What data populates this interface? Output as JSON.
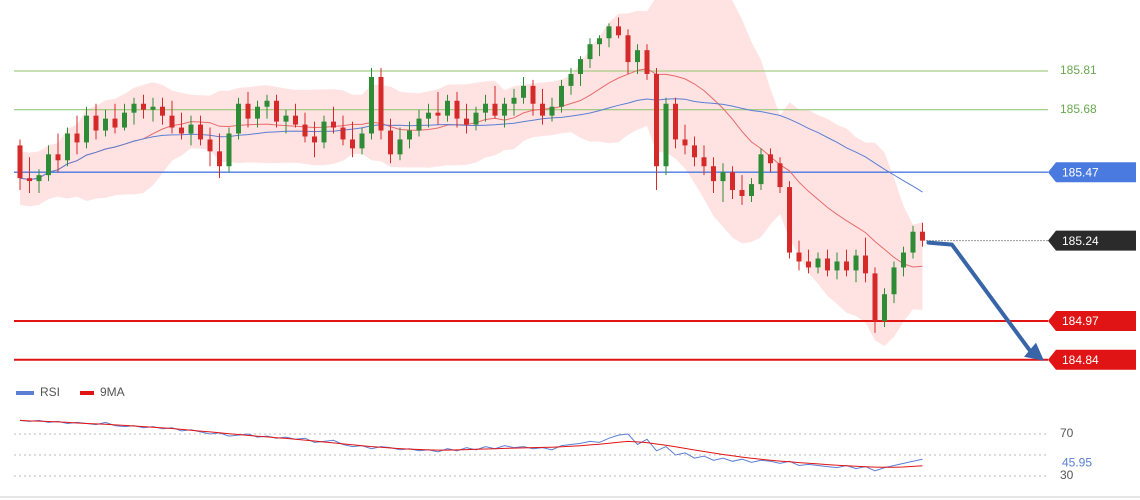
{
  "chart_data": [
    {
      "type": "candlestick",
      "title": "",
      "xlabel": "",
      "ylabel": "",
      "ylim": [
        184.78,
        186.0
      ],
      "grid": false,
      "candles_ohlc": [
        [
          185.56,
          185.58,
          185.41,
          185.45
        ],
        [
          185.45,
          185.52,
          185.4,
          185.44
        ],
        [
          185.44,
          185.48,
          185.4,
          185.46
        ],
        [
          185.46,
          185.56,
          185.44,
          185.53
        ],
        [
          185.53,
          185.6,
          185.47,
          185.51
        ],
        [
          185.51,
          185.62,
          185.49,
          185.6
        ],
        [
          185.6,
          185.66,
          185.53,
          185.57
        ],
        [
          185.57,
          185.69,
          185.55,
          185.66
        ],
        [
          185.66,
          185.7,
          185.58,
          185.61
        ],
        [
          185.61,
          185.68,
          185.59,
          185.65
        ],
        [
          185.65,
          185.7,
          185.6,
          185.62
        ],
        [
          185.62,
          185.7,
          185.61,
          185.67
        ],
        [
          185.67,
          185.72,
          185.63,
          185.7
        ],
        [
          185.7,
          185.73,
          185.65,
          185.68
        ],
        [
          185.68,
          185.72,
          185.64,
          185.69
        ],
        [
          185.69,
          185.72,
          185.63,
          185.66
        ],
        [
          185.66,
          185.71,
          185.6,
          185.62
        ],
        [
          185.62,
          185.67,
          185.58,
          185.6
        ],
        [
          185.6,
          185.66,
          185.56,
          185.63
        ],
        [
          185.63,
          185.66,
          185.56,
          185.58
        ],
        [
          185.58,
          185.62,
          185.49,
          185.54
        ],
        [
          185.54,
          185.6,
          185.45,
          185.49
        ],
        [
          185.49,
          185.62,
          185.47,
          185.6
        ],
        [
          185.6,
          185.72,
          185.58,
          185.7
        ],
        [
          185.7,
          185.74,
          185.62,
          185.65
        ],
        [
          185.65,
          185.71,
          185.62,
          185.69
        ],
        [
          185.69,
          185.73,
          185.65,
          185.71
        ],
        [
          185.71,
          185.73,
          185.62,
          185.64
        ],
        [
          185.64,
          185.68,
          185.6,
          185.66
        ],
        [
          185.66,
          185.7,
          185.62,
          185.63
        ],
        [
          185.63,
          185.67,
          185.57,
          185.59
        ],
        [
          185.59,
          185.64,
          185.52,
          185.57
        ],
        [
          185.57,
          185.66,
          185.55,
          185.64
        ],
        [
          185.64,
          185.69,
          185.6,
          185.62
        ],
        [
          185.62,
          185.66,
          185.56,
          185.58
        ],
        [
          185.58,
          185.64,
          185.52,
          185.55
        ],
        [
          185.55,
          185.62,
          185.53,
          185.6
        ],
        [
          185.6,
          185.82,
          185.58,
          185.79
        ],
        [
          185.79,
          185.82,
          185.58,
          185.61
        ],
        [
          185.61,
          185.65,
          185.5,
          185.53
        ],
        [
          185.53,
          185.62,
          185.51,
          185.58
        ],
        [
          185.58,
          185.64,
          185.55,
          185.61
        ],
        [
          185.61,
          185.68,
          185.59,
          185.65
        ],
        [
          185.65,
          185.7,
          185.62,
          185.67
        ],
        [
          185.67,
          185.74,
          185.63,
          185.66
        ],
        [
          185.66,
          185.73,
          185.64,
          185.71
        ],
        [
          185.71,
          185.74,
          185.62,
          185.65
        ],
        [
          185.65,
          185.7,
          185.6,
          185.63
        ],
        [
          185.63,
          185.69,
          185.61,
          185.67
        ],
        [
          185.67,
          185.73,
          185.64,
          185.7
        ],
        [
          185.7,
          185.76,
          185.65,
          185.66
        ],
        [
          185.66,
          185.72,
          185.62,
          185.7
        ],
        [
          185.7,
          185.75,
          185.66,
          185.72
        ],
        [
          185.72,
          185.79,
          185.7,
          185.76
        ],
        [
          185.76,
          185.78,
          185.66,
          185.7
        ],
        [
          185.7,
          185.75,
          185.63,
          185.66
        ],
        [
          185.66,
          185.72,
          185.64,
          185.69
        ],
        [
          185.69,
          185.78,
          185.67,
          185.76
        ],
        [
          185.76,
          185.82,
          185.73,
          185.8
        ],
        [
          185.8,
          185.86,
          185.76,
          185.85
        ],
        [
          185.85,
          185.92,
          185.82,
          185.9
        ],
        [
          185.9,
          185.93,
          185.86,
          185.92
        ],
        [
          185.92,
          185.97,
          185.89,
          185.96
        ],
        [
          185.96,
          185.99,
          185.92,
          185.93
        ],
        [
          185.93,
          185.95,
          185.8,
          185.84
        ],
        [
          185.84,
          185.9,
          185.8,
          185.88
        ],
        [
          185.88,
          185.9,
          185.78,
          185.8
        ],
        [
          185.8,
          185.82,
          185.41,
          185.49
        ],
        [
          185.49,
          185.72,
          185.46,
          185.7
        ],
        [
          185.7,
          185.72,
          185.55,
          185.58
        ],
        [
          185.58,
          185.63,
          185.53,
          185.56
        ],
        [
          185.56,
          185.59,
          185.49,
          185.52
        ],
        [
          185.52,
          185.56,
          185.46,
          185.49
        ],
        [
          185.49,
          185.52,
          185.4,
          185.44
        ],
        [
          185.44,
          185.5,
          185.37,
          185.47
        ],
        [
          185.47,
          185.49,
          185.38,
          185.41
        ],
        [
          185.41,
          185.46,
          185.36,
          185.39
        ],
        [
          185.39,
          185.45,
          185.37,
          185.43
        ],
        [
          185.43,
          185.55,
          185.41,
          185.53
        ],
        [
          185.53,
          185.55,
          185.47,
          185.5
        ],
        [
          185.5,
          185.52,
          185.4,
          185.42
        ],
        [
          185.42,
          185.44,
          185.18,
          185.2
        ],
        [
          185.2,
          185.24,
          185.14,
          185.17
        ],
        [
          185.17,
          185.21,
          185.13,
          185.15
        ],
        [
          185.15,
          185.2,
          185.13,
          185.18
        ],
        [
          185.18,
          185.21,
          185.12,
          185.14
        ],
        [
          185.14,
          185.2,
          185.11,
          185.17
        ],
        [
          185.17,
          185.21,
          185.12,
          185.14
        ],
        [
          185.14,
          185.21,
          185.1,
          185.19
        ],
        [
          185.19,
          185.25,
          185.1,
          185.13
        ],
        [
          185.13,
          185.15,
          184.93,
          184.97
        ],
        [
          184.97,
          185.08,
          184.95,
          185.06
        ],
        [
          185.06,
          185.17,
          185.03,
          185.15
        ],
        [
          185.15,
          185.22,
          185.12,
          185.2
        ],
        [
          185.2,
          185.29,
          185.18,
          185.27
        ],
        [
          185.27,
          185.3,
          185.22,
          185.24
        ]
      ],
      "horizontal_levels": [
        185.81,
        185.68,
        185.47,
        184.97,
        184.84
      ],
      "level_labels": {
        "resistance_2": "185.81",
        "resistance_1": "185.68",
        "pivot": "185.47",
        "current_price": "185.24",
        "support_1": "184.97",
        "support_2": "184.84"
      },
      "projection": {
        "from_price": 185.24,
        "to_price": 184.84,
        "direction": "down"
      },
      "overlays": [
        "bollinger_bands",
        "moving_average_fast",
        "moving_average_slow"
      ],
      "colors": {
        "bull_candle": "#2e8b36",
        "bear_candle": "#d42a2a",
        "bands": "#ffd9d9",
        "fast_ma": "#e86a6a",
        "slow_ma": "#5b7fd4",
        "resistance_line": "#8cc46a",
        "resistance_text": "#6aa84f",
        "pivot_line": "#4a7ae0",
        "pivot_badge": "#4a7ae0",
        "support_line": "#e01414",
        "support_badge": "#e01414",
        "price_badge": "#2b2b2b",
        "arrow": "#3864a8"
      }
    },
    {
      "type": "line",
      "ylim": [
        22,
        88
      ],
      "y_ticks": [
        70,
        30
      ],
      "y_tick_labels": [
        "70",
        "30"
      ],
      "current_value_label": "45.95",
      "legend": [
        {
          "name": "RSI",
          "color": "#5b7fd4"
        },
        {
          "name": "9MA",
          "color": "#e01414"
        }
      ],
      "series": [
        {
          "name": "RSI",
          "values": [
            83,
            82,
            83,
            81,
            82,
            80,
            81,
            80,
            79,
            81,
            78,
            77,
            78,
            76,
            77,
            75,
            76,
            73,
            74,
            72,
            70,
            71,
            68,
            69,
            70,
            67,
            68,
            66,
            67,
            65,
            66,
            62,
            63,
            64,
            60,
            58,
            59,
            56,
            58,
            57,
            55,
            56,
            54,
            55,
            53,
            56,
            54,
            57,
            55,
            58,
            56,
            59,
            57,
            58,
            56,
            57,
            55,
            59,
            60,
            61,
            63,
            62,
            66,
            69,
            70,
            60,
            65,
            54,
            58,
            50,
            52,
            47,
            49,
            45,
            47,
            44,
            46,
            43,
            45,
            44,
            42,
            44,
            40,
            41,
            40,
            39,
            38,
            40,
            37,
            39,
            35,
            38,
            40,
            42,
            44,
            46
          ]
        },
        {
          "name": "9MA",
          "values": [
            83,
            82.5,
            82.3,
            81.9,
            81.5,
            81,
            80.5,
            80,
            79.6,
            79.2,
            78.7,
            78.2,
            77.6,
            77,
            76.4,
            75.8,
            75.2,
            74.4,
            73.6,
            72.8,
            72,
            71.2,
            70.3,
            69.5,
            68.7,
            67.9,
            67.2,
            66.5,
            65.8,
            65,
            64.2,
            63.3,
            62.4,
            61.5,
            60.6,
            59.7,
            58.8,
            58,
            57.3,
            56.7,
            56.1,
            55.6,
            55.2,
            54.9,
            54.7,
            54.7,
            54.9,
            55.1,
            55.4,
            55.7,
            56,
            56.3,
            56.6,
            56.8,
            57,
            57.2,
            57.4,
            57.8,
            58.3,
            58.9,
            59.6,
            60.3,
            61.2,
            62.1,
            63,
            62.5,
            61.8,
            60.5,
            59.3,
            57.8,
            56.3,
            54.8,
            53.3,
            51.9,
            50.5,
            49.2,
            48,
            46.9,
            45.9,
            45,
            44.2,
            43.5,
            42.8,
            42.1,
            41.5,
            40.9,
            40.3,
            39.8,
            39.3,
            38.9,
            38.5,
            38.3,
            38.3,
            38.6,
            39.1,
            39.8
          ]
        }
      ]
    }
  ]
}
